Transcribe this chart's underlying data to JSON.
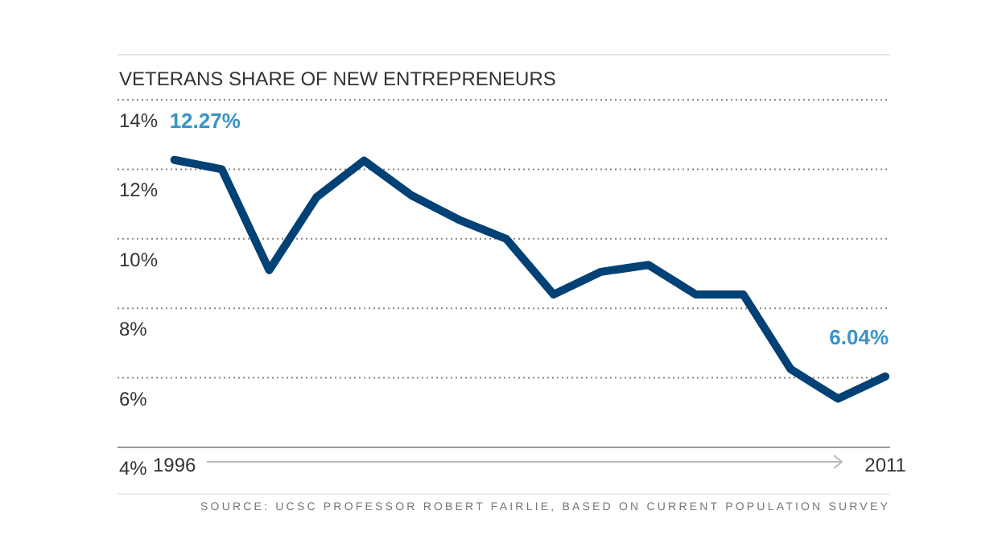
{
  "chart_data": {
    "type": "line",
    "title": "VETERANS SHARE OF NEW ENTREPRENEURS",
    "x": [
      1996,
      1997,
      1998,
      1999,
      2000,
      2001,
      2002,
      2003,
      2004,
      2005,
      2006,
      2007,
      2008,
      2009,
      2010,
      2011
    ],
    "series": [
      {
        "color": "#024175",
        "values": [
          12.27,
          12.0,
          9.1,
          11.2,
          12.25,
          11.25,
          10.55,
          10.0,
          8.4,
          9.05,
          9.25,
          8.4,
          8.4,
          6.25,
          5.4,
          6.04
        ],
        "value_labels": [
          "12.27%",
          null,
          null,
          null,
          null,
          null,
          null,
          null,
          null,
          null,
          null,
          null,
          null,
          null,
          null,
          "6.04%"
        ]
      }
    ],
    "xlim": [
      1994.8,
      2011.1
    ],
    "xticks": [
      1996,
      2011
    ],
    "ylim": [
      4,
      14
    ],
    "yticks": [
      {
        "value": 4,
        "label": "4%"
      },
      {
        "value": 6,
        "label": "6%"
      },
      {
        "value": 8,
        "label": "8%"
      },
      {
        "value": 10,
        "label": "10%"
      },
      {
        "value": 12,
        "label": "12%"
      },
      {
        "value": 14,
        "label": "14%"
      }
    ],
    "grid": "y",
    "marker": "none",
    "line_style": "solid",
    "annotations": [
      "SOURCE: UCSC PROFESSOR ROBERT FAIRLIE, BASED ON CURRENT POPULATION SURVEY"
    ]
  }
}
